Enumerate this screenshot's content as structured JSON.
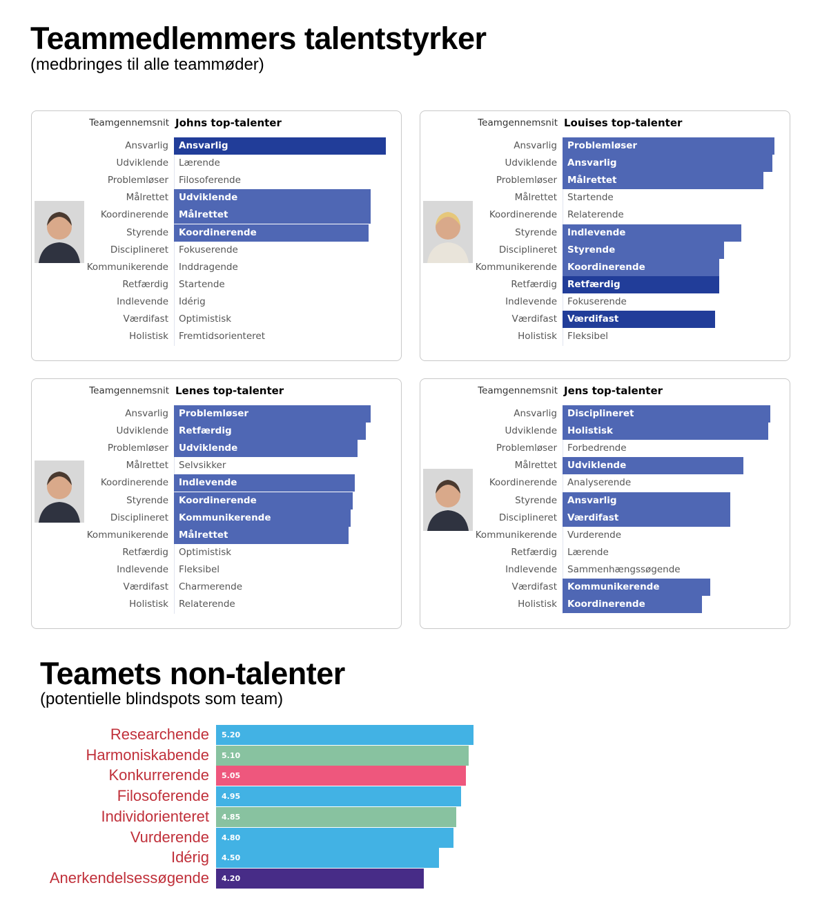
{
  "title": "Teammedlemmers talentstyrker",
  "subtitle": "(medbringes til alle teammøder)",
  "colors": {
    "dark": "#213d99",
    "medium": "#4f67b4"
  },
  "row_labels": [
    "Ansvarlig",
    "Udviklende",
    "Problemløser",
    "Målrettet",
    "Koordinerende",
    "Styrende",
    "Disciplineret",
    "Kommunikerende",
    "Retfærdig",
    "Indlevende",
    "Værdifast",
    "Holistisk"
  ],
  "avg_label": "Teamgennemsnit",
  "panels": [
    {
      "title": "Johns top-talenter",
      "photo": "person-photo-john",
      "rows": [
        {
          "text": "Ansvarlig",
          "value": 0.96,
          "tone": "dark"
        },
        {
          "text": "Lærende",
          "value": 0
        },
        {
          "text": "Filosoferende",
          "value": 0
        },
        {
          "text": "Udviklende",
          "value": 0.89,
          "tone": "medium"
        },
        {
          "text": "Målrettet",
          "value": 0.89,
          "tone": "medium"
        },
        {
          "text": "Koordinerende",
          "value": 0.88,
          "tone": "medium"
        },
        {
          "text": "Fokuserende",
          "value": 0
        },
        {
          "text": "Inddragende",
          "value": 0
        },
        {
          "text": "Startende",
          "value": 0
        },
        {
          "text": "Idérig",
          "value": 0
        },
        {
          "text": "Optimistisk",
          "value": 0
        },
        {
          "text": "Fremtidsorienteret",
          "value": 0
        }
      ]
    },
    {
      "title": "Louises top-talenter",
      "photo": "person-photo-louise",
      "rows": [
        {
          "text": "Problemløser",
          "value": 0.96,
          "tone": "medium"
        },
        {
          "text": "Ansvarlig",
          "value": 0.95,
          "tone": "medium"
        },
        {
          "text": "Målrettet",
          "value": 0.91,
          "tone": "medium"
        },
        {
          "text": "Startende",
          "value": 0
        },
        {
          "text": "Relaterende",
          "value": 0
        },
        {
          "text": "Indlevende",
          "value": 0.81,
          "tone": "medium"
        },
        {
          "text": "Styrende",
          "value": 0.73,
          "tone": "medium"
        },
        {
          "text": "Koordinerende",
          "value": 0.71,
          "tone": "medium"
        },
        {
          "text": "Retfærdig",
          "value": 0.71,
          "tone": "dark"
        },
        {
          "text": "Fokuserende",
          "value": 0
        },
        {
          "text": "Værdifast",
          "value": 0.69,
          "tone": "dark"
        },
        {
          "text": "Fleksibel",
          "value": 0
        }
      ]
    },
    {
      "title": "Lenes top-talenter",
      "photo": "person-photo-lene",
      "rows": [
        {
          "text": "Problemløser",
          "value": 0.89,
          "tone": "medium"
        },
        {
          "text": "Retfærdig",
          "value": 0.87,
          "tone": "medium"
        },
        {
          "text": "Udviklende",
          "value": 0.83,
          "tone": "medium"
        },
        {
          "text": "Selvsikker",
          "value": 0
        },
        {
          "text": "Indlevende",
          "value": 0.82,
          "tone": "medium"
        },
        {
          "text": "Koordinerende",
          "value": 0.81,
          "tone": "medium"
        },
        {
          "text": "Kommunikerende",
          "value": 0.8,
          "tone": "medium"
        },
        {
          "text": "Målrettet",
          "value": 0.79,
          "tone": "medium"
        },
        {
          "text": "Optimistisk",
          "value": 0
        },
        {
          "text": "Fleksibel",
          "value": 0
        },
        {
          "text": "Charmerende",
          "value": 0
        },
        {
          "text": "Relaterende",
          "value": 0
        }
      ]
    },
    {
      "title": "Jens top-talenter",
      "photo": "person-photo-jens",
      "rows": [
        {
          "text": "Disciplineret",
          "value": 0.94,
          "tone": "medium"
        },
        {
          "text": "Holistisk",
          "value": 0.93,
          "tone": "medium"
        },
        {
          "text": "Forbedrende",
          "value": 0
        },
        {
          "text": "Udviklende",
          "value": 0.82,
          "tone": "medium"
        },
        {
          "text": "Analyserende",
          "value": 0
        },
        {
          "text": "Ansvarlig",
          "value": 0.76,
          "tone": "medium"
        },
        {
          "text": "Værdifast",
          "value": 0.76,
          "tone": "medium"
        },
        {
          "text": "Vurderende",
          "value": 0
        },
        {
          "text": "Lærende",
          "value": 0
        },
        {
          "text": "Sammenhængssøgende",
          "value": 0
        },
        {
          "text": "Kommunikerende",
          "value": 0.67,
          "tone": "medium"
        },
        {
          "text": "Koordinerende",
          "value": 0.63,
          "tone": "medium"
        }
      ]
    }
  ],
  "chart_data": {
    "type": "bar",
    "orientation": "horizontal",
    "title": "Teamets non-talenter",
    "subtitle": "(potentielle blindspots som team)",
    "categories": [
      "Researchende",
      "Harmoniskabende",
      "Konkurrerende",
      "Filosoferende",
      "Individorienteret",
      "Vurderende",
      "Idérig",
      "Anerkendelsessøgende"
    ],
    "values": [
      5.2,
      5.1,
      5.05,
      4.95,
      4.85,
      4.8,
      4.5,
      4.2
    ],
    "labels": [
      "5.20",
      "5.10",
      "5.05",
      "4.95",
      "4.85",
      "4.80",
      "4.50",
      "4.20"
    ],
    "colors": [
      "#42b2e4",
      "#88c2a0",
      "#ee577d",
      "#42b2e4",
      "#88c2a0",
      "#42b2e4",
      "#42b2e4",
      "#472c87"
    ],
    "xlim": [
      0,
      5.2
    ]
  }
}
